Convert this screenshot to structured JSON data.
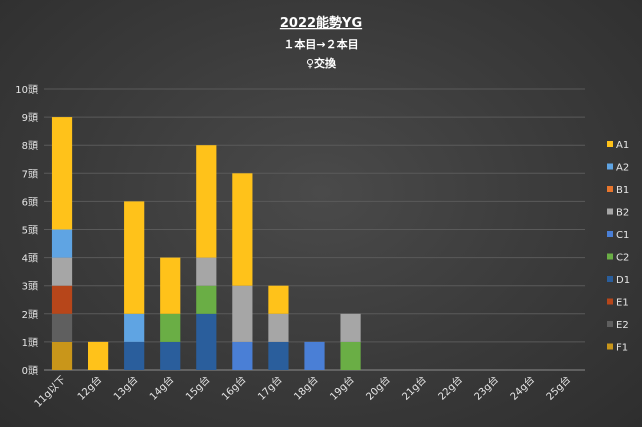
{
  "chart_data": {
    "type": "bar",
    "stacked": true,
    "title": "2022能勢YG",
    "subtitle_lines": [
      "１本目→２本目",
      "♀交換"
    ],
    "xlabel": "",
    "ylabel": "",
    "ylim": [
      0,
      10
    ],
    "y_ticks": [
      "0頭",
      "1頭",
      "2頭",
      "3頭",
      "4頭",
      "5頭",
      "6頭",
      "7頭",
      "8頭",
      "9頭",
      "10頭"
    ],
    "grid": true,
    "legend_position": "right",
    "categories": [
      "11g以下",
      "12g台",
      "13g台",
      "14g台",
      "15g台",
      "16g台",
      "17g台",
      "18g台",
      "19g台",
      "20g台",
      "21g台",
      "22g台",
      "23g台",
      "24g台",
      "25g台"
    ],
    "series": [
      {
        "name": "F1",
        "color": "#c9961a",
        "values": [
          1,
          0,
          0,
          0,
          0,
          0,
          0,
          0,
          0,
          0,
          0,
          0,
          0,
          0,
          0
        ]
      },
      {
        "name": "E2",
        "color": "#5f5f5f",
        "values": [
          1,
          0,
          0,
          0,
          0,
          0,
          0,
          0,
          0,
          0,
          0,
          0,
          0,
          0,
          0
        ]
      },
      {
        "name": "E1",
        "color": "#b7461a",
        "values": [
          1,
          0,
          0,
          0,
          0,
          0,
          0,
          0,
          0,
          0,
          0,
          0,
          0,
          0,
          0
        ]
      },
      {
        "name": "D1",
        "color": "#2a5e9c",
        "values": [
          0,
          0,
          1,
          1,
          2,
          0,
          1,
          0,
          0,
          0,
          0,
          0,
          0,
          0,
          0
        ]
      },
      {
        "name": "C2",
        "color": "#6aae45",
        "values": [
          0,
          0,
          0,
          1,
          1,
          0,
          0,
          0,
          1,
          0,
          0,
          0,
          0,
          0,
          0
        ]
      },
      {
        "name": "C1",
        "color": "#4a7fd6",
        "values": [
          0,
          0,
          0,
          0,
          0,
          1,
          0,
          1,
          0,
          0,
          0,
          0,
          0,
          0,
          0
        ]
      },
      {
        "name": "B2",
        "color": "#a6a6a6",
        "values": [
          1,
          0,
          0,
          0,
          1,
          2,
          1,
          0,
          1,
          0,
          0,
          0,
          0,
          0,
          0
        ]
      },
      {
        "name": "B1",
        "color": "#e8762d",
        "values": [
          0,
          0,
          0,
          0,
          0,
          0,
          0,
          0,
          0,
          0,
          0,
          0,
          0,
          0,
          0
        ]
      },
      {
        "name": "A2",
        "color": "#5fa4e3",
        "values": [
          1,
          0,
          1,
          0,
          0,
          0,
          0,
          0,
          0,
          0,
          0,
          0,
          0,
          0,
          0
        ]
      },
      {
        "name": "A1",
        "color": "#ffc21a",
        "values": [
          4,
          1,
          4,
          2,
          4,
          4,
          1,
          0,
          0,
          0,
          0,
          0,
          0,
          0,
          0
        ]
      }
    ],
    "legend_order": [
      "A1",
      "A2",
      "B1",
      "B2",
      "C1",
      "C2",
      "D1",
      "E1",
      "E2",
      "F1"
    ]
  }
}
